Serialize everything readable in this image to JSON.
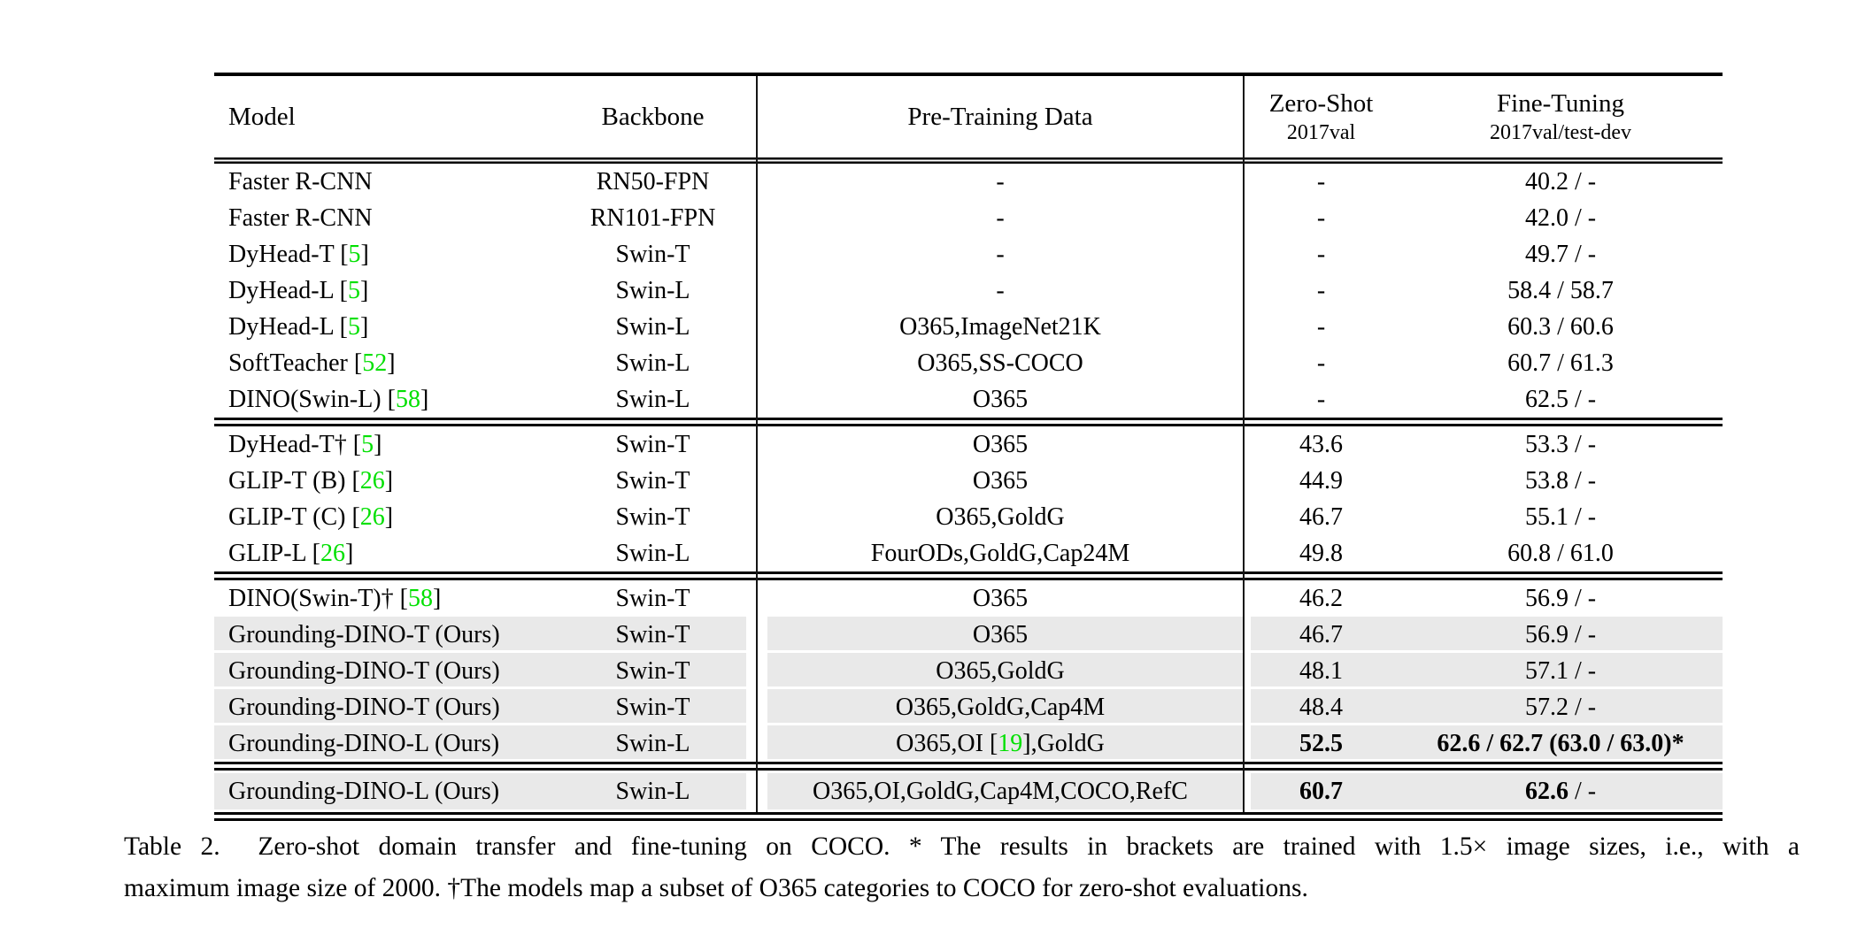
{
  "colors": {
    "citation_green": "#00e000",
    "row_highlight_gray": "#e9e9e9"
  },
  "table": {
    "columns": [
      {
        "label": "Model"
      },
      {
        "label": "Backbone"
      },
      {
        "label": "Pre-Training Data"
      },
      {
        "label": "Zero-Shot",
        "sublabel": "2017val"
      },
      {
        "label": "Fine-Tuning",
        "sublabel": "2017val/test-dev"
      }
    ],
    "sections": [
      {
        "rows": [
          {
            "model": "Faster R-CNN",
            "backbone": "RN50-FPN",
            "pretrain": "-",
            "zero_shot": "-",
            "fine_tuning": "40.2 / -",
            "highlight": false
          },
          {
            "model": "Faster R-CNN",
            "backbone": "RN101-FPN",
            "pretrain": "-",
            "zero_shot": "-",
            "fine_tuning": "42.0 / -",
            "highlight": false
          },
          {
            "model": "DyHead-T [{g|5}]",
            "backbone": "Swin-T",
            "pretrain": "-",
            "zero_shot": "-",
            "fine_tuning": "49.7 / -",
            "highlight": false
          },
          {
            "model": "DyHead-L [{g|5}]",
            "backbone": "Swin-L",
            "pretrain": "-",
            "zero_shot": "-",
            "fine_tuning": "58.4 / 58.7",
            "highlight": false
          },
          {
            "model": "DyHead-L [{g|5}]",
            "backbone": "Swin-L",
            "pretrain": "O365,ImageNet21K",
            "zero_shot": "-",
            "fine_tuning": "60.3 / 60.6",
            "highlight": false
          },
          {
            "model": "SoftTeacher [{g|52}]",
            "backbone": "Swin-L",
            "pretrain": "O365,SS-COCO",
            "zero_shot": "-",
            "fine_tuning": "60.7 / 61.3",
            "highlight": false
          },
          {
            "model": "DINO(Swin-L) [{g|58}]",
            "backbone": "Swin-L",
            "pretrain": "O365",
            "zero_shot": "-",
            "fine_tuning": "62.5 / -",
            "highlight": false
          }
        ]
      },
      {
        "rows": [
          {
            "model": "DyHead-T† [{g|5}]",
            "backbone": "Swin-T",
            "pretrain": "O365",
            "zero_shot": "43.6",
            "fine_tuning": "53.3 / -",
            "highlight": false
          },
          {
            "model": "GLIP-T (B) [{g|26}]",
            "backbone": "Swin-T",
            "pretrain": "O365",
            "zero_shot": "44.9",
            "fine_tuning": "53.8 / -",
            "highlight": false
          },
          {
            "model": "GLIP-T (C) [{g|26}]",
            "backbone": "Swin-T",
            "pretrain": "O365,GoldG",
            "zero_shot": "46.7",
            "fine_tuning": "55.1 / -",
            "highlight": false
          },
          {
            "model": "GLIP-L [{g|26}]",
            "backbone": "Swin-L",
            "pretrain": "FourODs,GoldG,Cap24M",
            "zero_shot": "49.8",
            "fine_tuning": "60.8 / 61.0",
            "highlight": false
          }
        ]
      },
      {
        "rows": [
          {
            "model": "DINO(Swin-T)† [{g|58}]",
            "backbone": "Swin-T",
            "pretrain": "O365",
            "zero_shot": "46.2",
            "fine_tuning": "56.9 / -",
            "highlight": false
          },
          {
            "model": "Grounding-DINO-T (Ours)",
            "backbone": "Swin-T",
            "pretrain": "O365",
            "zero_shot": "46.7",
            "fine_tuning": "56.9 / -",
            "highlight": true
          },
          {
            "model": "Grounding-DINO-T (Ours)",
            "backbone": "Swin-T",
            "pretrain": "O365,GoldG",
            "zero_shot": "48.1",
            "fine_tuning": "57.1 / -",
            "highlight": true
          },
          {
            "model": "Grounding-DINO-T (Ours)",
            "backbone": "Swin-T",
            "pretrain": "O365,GoldG,Cap4M",
            "zero_shot": "48.4",
            "fine_tuning": "57.2 / -",
            "highlight": true
          },
          {
            "model": "Grounding-DINO-L (Ours)",
            "backbone": "Swin-L",
            "pretrain": "O365,OI [{g|19}],GoldG",
            "zero_shot": "{b|52.5}",
            "fine_tuning": "{b|62.6 / 62.7 (63.0 / 63.0)*}",
            "highlight": true
          }
        ]
      },
      {
        "rows": [
          {
            "model": "Grounding-DINO-L (Ours)",
            "backbone": "Swin-L",
            "pretrain": "O365,OI,GoldG,Cap4M,COCO,RefC",
            "zero_shot": "{b|60.7}",
            "fine_tuning": "{b|62.6} / -",
            "highlight": true
          }
        ]
      }
    ]
  },
  "caption": {
    "line1": "Table 2.  Zero-shot domain transfer and fine-tuning on COCO. * The results in brackets are trained with 1.5× image sizes, i.e., with a",
    "line2": "maximum image size of 2000. †The models map a subset of O365 categories to COCO for zero-shot evaluations."
  }
}
